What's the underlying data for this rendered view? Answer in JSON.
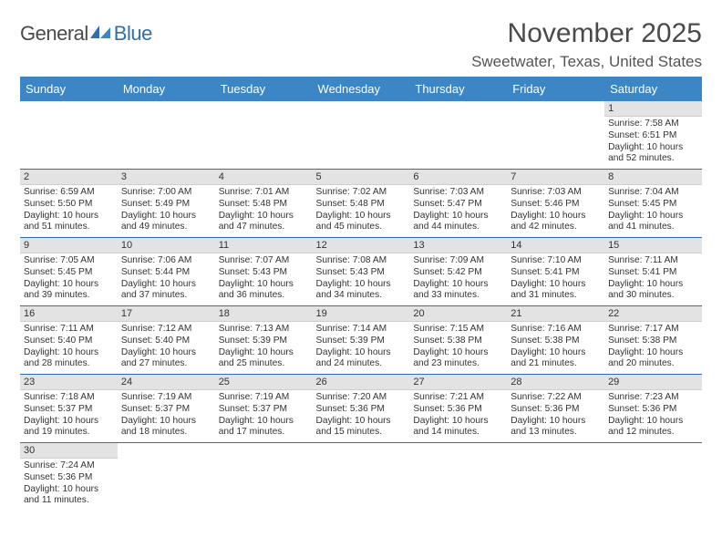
{
  "logo": {
    "general": "General",
    "blue": "Blue"
  },
  "title": "November 2025",
  "location": "Sweetwater, Texas, United States",
  "weekdays": [
    "Sunday",
    "Monday",
    "Tuesday",
    "Wednesday",
    "Thursday",
    "Friday",
    "Saturday"
  ],
  "colors": {
    "header_bg": "#3d86c6",
    "header_text": "#ffffff",
    "daynum_bg": "#e3e3e3",
    "border": "#2e6fb0",
    "text": "#333333",
    "logo_general": "#4a4a4a",
    "logo_blue": "#2e6fb0"
  },
  "labels": {
    "sunrise": "Sunrise:",
    "sunset": "Sunset:",
    "daylight": "Daylight:"
  },
  "weeks": [
    [
      null,
      null,
      null,
      null,
      null,
      null,
      {
        "n": "1",
        "sunrise": "7:58 AM",
        "sunset": "6:51 PM",
        "daylight": "10 hours and 52 minutes."
      }
    ],
    [
      {
        "n": "2",
        "sunrise": "6:59 AM",
        "sunset": "5:50 PM",
        "daylight": "10 hours and 51 minutes."
      },
      {
        "n": "3",
        "sunrise": "7:00 AM",
        "sunset": "5:49 PM",
        "daylight": "10 hours and 49 minutes."
      },
      {
        "n": "4",
        "sunrise": "7:01 AM",
        "sunset": "5:48 PM",
        "daylight": "10 hours and 47 minutes."
      },
      {
        "n": "5",
        "sunrise": "7:02 AM",
        "sunset": "5:48 PM",
        "daylight": "10 hours and 45 minutes."
      },
      {
        "n": "6",
        "sunrise": "7:03 AM",
        "sunset": "5:47 PM",
        "daylight": "10 hours and 44 minutes."
      },
      {
        "n": "7",
        "sunrise": "7:03 AM",
        "sunset": "5:46 PM",
        "daylight": "10 hours and 42 minutes."
      },
      {
        "n": "8",
        "sunrise": "7:04 AM",
        "sunset": "5:45 PM",
        "daylight": "10 hours and 41 minutes."
      }
    ],
    [
      {
        "n": "9",
        "sunrise": "7:05 AM",
        "sunset": "5:45 PM",
        "daylight": "10 hours and 39 minutes."
      },
      {
        "n": "10",
        "sunrise": "7:06 AM",
        "sunset": "5:44 PM",
        "daylight": "10 hours and 37 minutes."
      },
      {
        "n": "11",
        "sunrise": "7:07 AM",
        "sunset": "5:43 PM",
        "daylight": "10 hours and 36 minutes."
      },
      {
        "n": "12",
        "sunrise": "7:08 AM",
        "sunset": "5:43 PM",
        "daylight": "10 hours and 34 minutes."
      },
      {
        "n": "13",
        "sunrise": "7:09 AM",
        "sunset": "5:42 PM",
        "daylight": "10 hours and 33 minutes."
      },
      {
        "n": "14",
        "sunrise": "7:10 AM",
        "sunset": "5:41 PM",
        "daylight": "10 hours and 31 minutes."
      },
      {
        "n": "15",
        "sunrise": "7:11 AM",
        "sunset": "5:41 PM",
        "daylight": "10 hours and 30 minutes."
      }
    ],
    [
      {
        "n": "16",
        "sunrise": "7:11 AM",
        "sunset": "5:40 PM",
        "daylight": "10 hours and 28 minutes."
      },
      {
        "n": "17",
        "sunrise": "7:12 AM",
        "sunset": "5:40 PM",
        "daylight": "10 hours and 27 minutes."
      },
      {
        "n": "18",
        "sunrise": "7:13 AM",
        "sunset": "5:39 PM",
        "daylight": "10 hours and 25 minutes."
      },
      {
        "n": "19",
        "sunrise": "7:14 AM",
        "sunset": "5:39 PM",
        "daylight": "10 hours and 24 minutes."
      },
      {
        "n": "20",
        "sunrise": "7:15 AM",
        "sunset": "5:38 PM",
        "daylight": "10 hours and 23 minutes."
      },
      {
        "n": "21",
        "sunrise": "7:16 AM",
        "sunset": "5:38 PM",
        "daylight": "10 hours and 21 minutes."
      },
      {
        "n": "22",
        "sunrise": "7:17 AM",
        "sunset": "5:38 PM",
        "daylight": "10 hours and 20 minutes."
      }
    ],
    [
      {
        "n": "23",
        "sunrise": "7:18 AM",
        "sunset": "5:37 PM",
        "daylight": "10 hours and 19 minutes."
      },
      {
        "n": "24",
        "sunrise": "7:19 AM",
        "sunset": "5:37 PM",
        "daylight": "10 hours and 18 minutes."
      },
      {
        "n": "25",
        "sunrise": "7:19 AM",
        "sunset": "5:37 PM",
        "daylight": "10 hours and 17 minutes."
      },
      {
        "n": "26",
        "sunrise": "7:20 AM",
        "sunset": "5:36 PM",
        "daylight": "10 hours and 15 minutes."
      },
      {
        "n": "27",
        "sunrise": "7:21 AM",
        "sunset": "5:36 PM",
        "daylight": "10 hours and 14 minutes."
      },
      {
        "n": "28",
        "sunrise": "7:22 AM",
        "sunset": "5:36 PM",
        "daylight": "10 hours and 13 minutes."
      },
      {
        "n": "29",
        "sunrise": "7:23 AM",
        "sunset": "5:36 PM",
        "daylight": "10 hours and 12 minutes."
      }
    ],
    [
      {
        "n": "30",
        "sunrise": "7:24 AM",
        "sunset": "5:36 PM",
        "daylight": "10 hours and 11 minutes."
      },
      null,
      null,
      null,
      null,
      null,
      null
    ]
  ]
}
